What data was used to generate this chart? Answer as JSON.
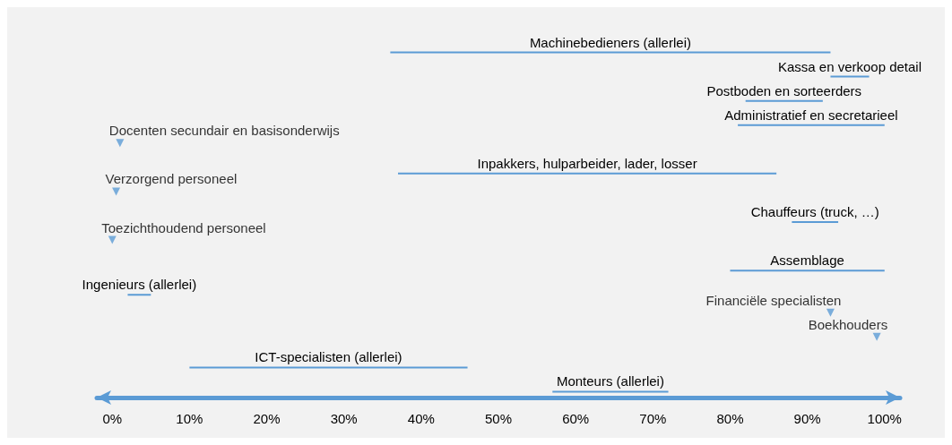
{
  "chart_data": {
    "type": "bar",
    "orientation": "horizontal",
    "categories": [
      "Machinebedieners (allerlei)",
      "Kassa en verkoop detail",
      "Postboden en sorteerders",
      "Administratief en secretarieel",
      "Docenten secundair en basisonderwijs",
      "Inpakkers, hulparbeider, lader, losser",
      "Verzorgend personeel",
      "Chauffeurs (truck, …)",
      "Toezichthoudend personeel",
      "Assemblage",
      "Ingenieurs (allerlei)",
      "Financiële specialisten",
      "Boekhouders",
      "ICT-specialisten (allerlei)",
      "Monteurs (allerlei)"
    ],
    "series": [
      {
        "color": "#5b9bd5",
        "base": [
          36,
          93,
          82,
          81,
          null,
          37,
          null,
          88,
          null,
          80,
          2,
          null,
          null,
          10,
          57
        ],
        "values": [
          57,
          5,
          10,
          19,
          null,
          49,
          null,
          6,
          null,
          20,
          3,
          null,
          null,
          36,
          15
        ]
      },
      {
        "type": "scatter",
        "color": "#5b9bd5",
        "values": [
          null,
          null,
          null,
          null,
          1,
          null,
          0.5,
          null,
          0,
          null,
          null,
          93,
          99,
          null,
          null
        ]
      }
    ],
    "marker": "triangle",
    "xlim": [
      -2,
      102
    ],
    "xticks": [
      {
        "value": 0,
        "label": "0%"
      },
      {
        "value": 10,
        "label": "10%"
      },
      {
        "value": 20,
        "label": "20%"
      },
      {
        "value": 30,
        "label": "30%"
      },
      {
        "value": 40,
        "label": "40%"
      },
      {
        "value": 50,
        "label": "50%"
      },
      {
        "value": 60,
        "label": "60%"
      },
      {
        "value": 70,
        "label": "70%"
      },
      {
        "value": 80,
        "label": "80%"
      },
      {
        "value": 90,
        "label": "90%"
      },
      {
        "value": 100,
        "label": "100%"
      }
    ],
    "grid": false,
    "tick_labels": "x"
  }
}
